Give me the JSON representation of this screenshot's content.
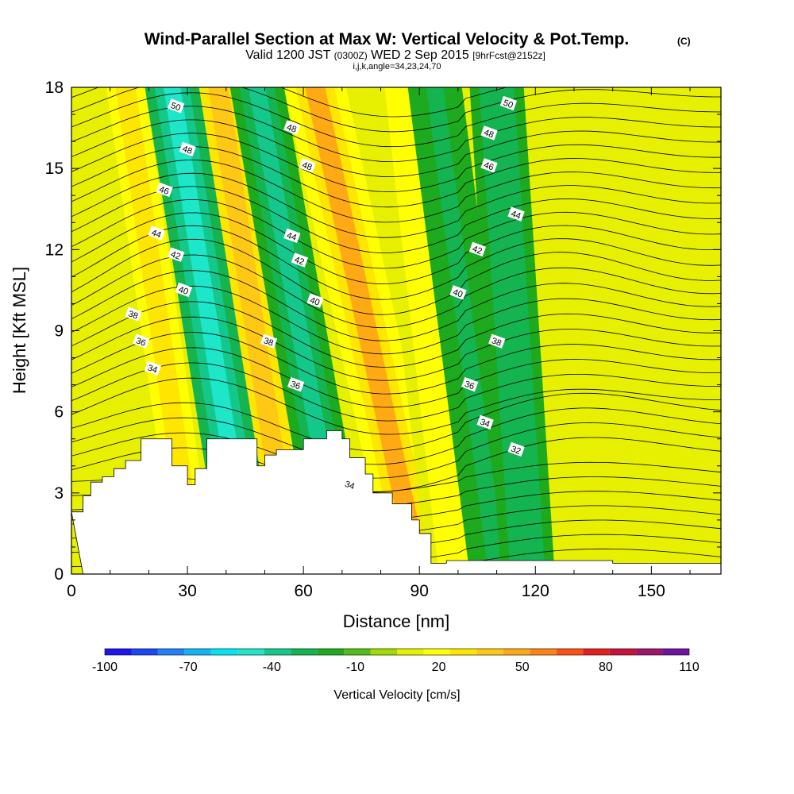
{
  "chart_data": {
    "type": "heatmap",
    "title": "Wind-Parallel Section at Max W: Vertical Velocity & Pot.Temp.",
    "title_mark": "(C)",
    "subtitle": {
      "valid": "Valid 1200 JST",
      "zulu": "(0300Z)",
      "date": "WED 2 Sep 2015",
      "fcst": "[9hrFcst@2152z]"
    },
    "subtitle2": "i,j,k,angle=34,23,24,70",
    "xlabel": "Distance [nm]",
    "ylabel": "Height [Kft MSL]",
    "xlim": [
      0,
      168
    ],
    "ylim": [
      0,
      18
    ],
    "x_ticks": [
      "0",
      "30",
      "60",
      "90",
      "120",
      "150"
    ],
    "y_ticks": [
      "0",
      "3",
      "6",
      "9",
      "12",
      "15",
      "18"
    ],
    "x_tick_values": [
      0,
      30,
      60,
      90,
      120,
      150
    ],
    "y_tick_values": [
      0,
      3,
      6,
      9,
      12,
      15,
      18
    ],
    "colorbar": {
      "label": "Vertical Velocity [cm/s]",
      "tick_labels": [
        "-100",
        "-70",
        "-40",
        "-10",
        "20",
        "50",
        "80",
        "110"
      ],
      "levels": [
        -100,
        -90,
        -80,
        -70,
        -60,
        -50,
        -40,
        -30,
        -20,
        -10,
        0,
        10,
        20,
        30,
        40,
        50,
        60,
        70,
        80,
        90,
        100,
        110
      ],
      "colors": [
        "#1e14f0",
        "#1e46f5",
        "#1e82fa",
        "#10b4fa",
        "#00e6f0",
        "#1ee6c8",
        "#14c88c",
        "#14b450",
        "#1eaa1e",
        "#50be14",
        "#a0dc00",
        "#e6f000",
        "#ffff00",
        "#ffe600",
        "#ffc814",
        "#ffaa14",
        "#ff8214",
        "#ff5014",
        "#e61e1e",
        "#c8143c",
        "#a0146e",
        "#6e14a0"
      ]
    },
    "upward_bands": [
      {
        "x_bottom": 32,
        "x_top": 14,
        "w_cm_s": 30
      },
      {
        "x_bottom": 57,
        "x_top": 38,
        "w_cm_s": 40
      },
      {
        "x_bottom": 90,
        "x_top": 63,
        "w_cm_s": 50
      },
      {
        "x_bottom": 100,
        "x_top": 86,
        "w_cm_s": 25
      }
    ],
    "downward_bands": [
      {
        "x_bottom": 46,
        "x_top": 26,
        "w_cm_s": -50
      },
      {
        "x_bottom": 70,
        "x_top": 48,
        "w_cm_s": -35
      },
      {
        "x_bottom": 110,
        "x_top": 94,
        "w_cm_s": -25
      },
      {
        "x_bottom": 118,
        "x_top": 110,
        "w_cm_s": -30
      }
    ],
    "terrain": {
      "distance": [
        3,
        5,
        8,
        11,
        14,
        18,
        20,
        26,
        30,
        32,
        35,
        38,
        40,
        45,
        48,
        50,
        53,
        60,
        66,
        70,
        72,
        76,
        78,
        83,
        88,
        90,
        93,
        97,
        140,
        150,
        168
      ],
      "height": [
        2.3,
        2.9,
        3.4,
        3.6,
        3.9,
        4.2,
        5.0,
        5.0,
        4.0,
        3.3,
        3.9,
        5.0,
        5.0,
        5.0,
        5.0,
        4.0,
        4.4,
        4.6,
        5.0,
        5.3,
        5.0,
        4.3,
        3.7,
        3.0,
        2.6,
        2.0,
        1.5,
        0.4,
        0.5,
        0.4,
        0.4
      ]
    },
    "theta_contour_labels": [
      {
        "text": "50",
        "x": 27,
        "y": 17.3
      },
      {
        "text": "48",
        "x": 30,
        "y": 15.7
      },
      {
        "text": "46",
        "x": 24,
        "y": 14.2
      },
      {
        "text": "44",
        "x": 22,
        "y": 12.6
      },
      {
        "text": "42",
        "x": 27,
        "y": 11.8
      },
      {
        "text": "40",
        "x": 29,
        "y": 10.5
      },
      {
        "text": "38",
        "x": 16,
        "y": 9.6
      },
      {
        "text": "36",
        "x": 18,
        "y": 8.6
      },
      {
        "text": "34",
        "x": 21,
        "y": 7.6
      },
      {
        "text": "48",
        "x": 57,
        "y": 16.5
      },
      {
        "text": "48",
        "x": 61,
        "y": 15.1
      },
      {
        "text": "44",
        "x": 57,
        "y": 12.5
      },
      {
        "text": "42",
        "x": 59,
        "y": 11.6
      },
      {
        "text": "40",
        "x": 63,
        "y": 10.1
      },
      {
        "text": "38",
        "x": 51,
        "y": 8.6
      },
      {
        "text": "36",
        "x": 58,
        "y": 7.0
      },
      {
        "text": "34",
        "x": 72,
        "y": 3.3
      },
      {
        "text": "50",
        "x": 113,
        "y": 17.4
      },
      {
        "text": "48",
        "x": 108,
        "y": 16.3
      },
      {
        "text": "46",
        "x": 108,
        "y": 15.1
      },
      {
        "text": "44",
        "x": 115,
        "y": 13.3
      },
      {
        "text": "42",
        "x": 105,
        "y": 12.0
      },
      {
        "text": "40",
        "x": 100,
        "y": 10.4
      },
      {
        "text": "38",
        "x": 110,
        "y": 8.6
      },
      {
        "text": "36",
        "x": 103,
        "y": 7.0
      },
      {
        "text": "34",
        "x": 107,
        "y": 5.6
      },
      {
        "text": "32",
        "x": 115,
        "y": 4.6
      }
    ]
  }
}
